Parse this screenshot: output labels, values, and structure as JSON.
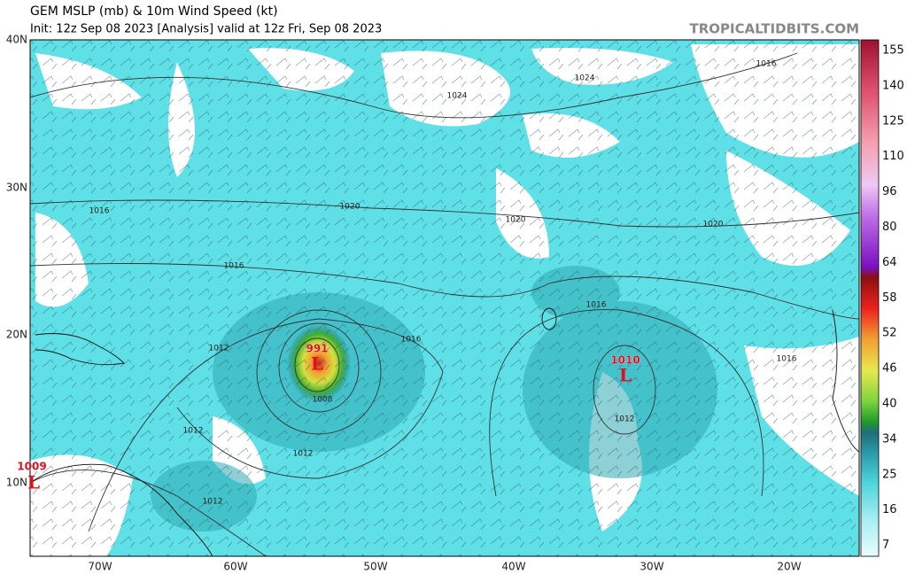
{
  "header": {
    "title": "GEM MSLP (mb) & 10m Wind Speed (kt)",
    "subtitle": "Init: 12z Sep 08 2023  [Analysis]  valid at 12z Fri, Sep 08 2023",
    "site": "TROPICALTIDBITS.COM"
  },
  "map": {
    "lat_labels": [
      "40N",
      "30N",
      "20N",
      "10N"
    ],
    "lon_labels": [
      "70W",
      "60W",
      "50W",
      "40W",
      "30W",
      "20W"
    ],
    "isobar_labels": [
      "1024",
      "1024",
      "1016",
      "1016",
      "1020",
      "1020",
      "1020",
      "1016",
      "1016",
      "1016",
      "1016",
      "1012",
      "1008",
      "1012",
      "1012",
      "1012",
      "1012"
    ],
    "lows": [
      {
        "pressure": "991",
        "symbol": "L"
      },
      {
        "pressure": "1010",
        "symbol": "L"
      },
      {
        "pressure": "1009",
        "symbol": "L"
      }
    ]
  },
  "colorbar": {
    "labels": [
      "155",
      "140",
      "125",
      "110",
      "96",
      "80",
      "64",
      "58",
      "52",
      "46",
      "40",
      "34",
      "25",
      "16",
      "7"
    ]
  }
}
